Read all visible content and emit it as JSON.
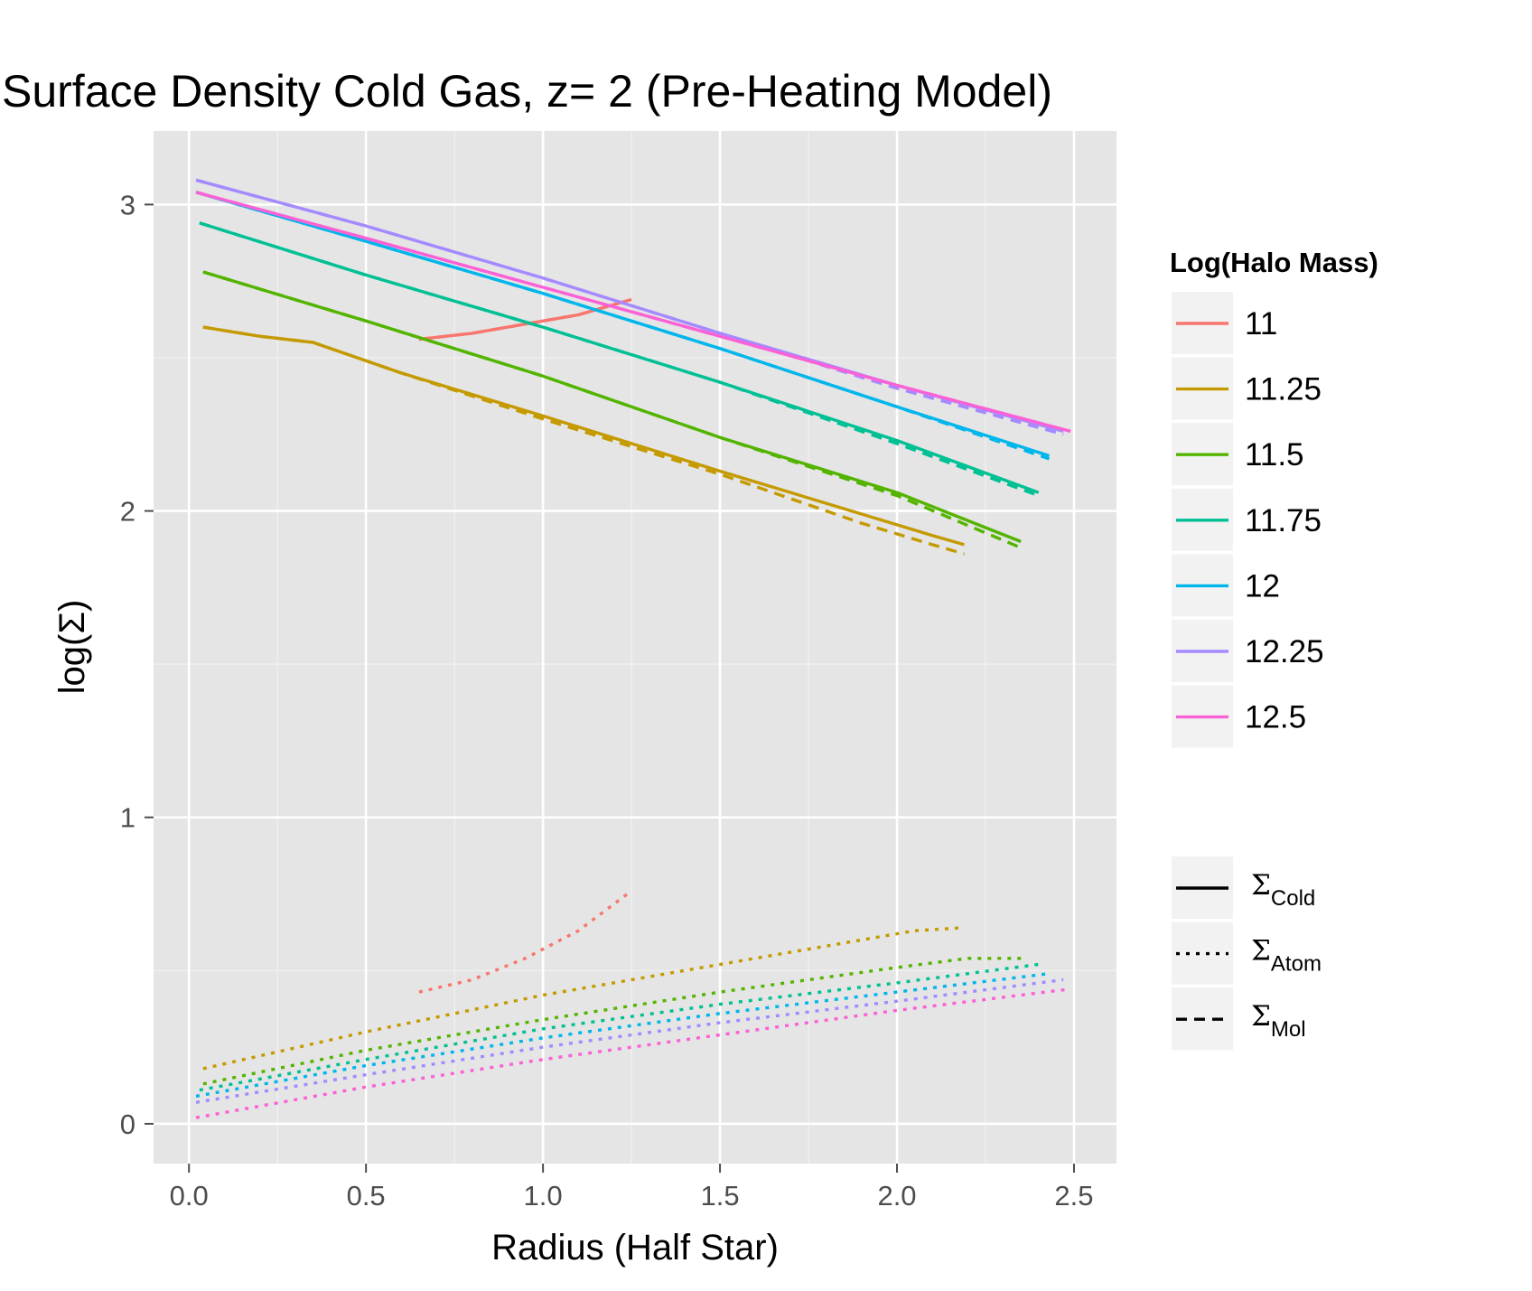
{
  "chart_data": {
    "type": "line",
    "title": "Surface Density Cold Gas, z= 2 (Pre-Heating Model)",
    "xlabel": "Radius (Half Star)",
    "ylabel": "log(Σ)",
    "xlim": [
      -0.1,
      2.62
    ],
    "ylim": [
      -0.13,
      3.24
    ],
    "xticks": [
      {
        "value": 0.0,
        "label": "0.0"
      },
      {
        "value": 0.5,
        "label": "0.5"
      },
      {
        "value": 1.0,
        "label": "1.0"
      },
      {
        "value": 1.5,
        "label": "1.5"
      },
      {
        "value": 2.0,
        "label": "2.0"
      },
      {
        "value": 2.5,
        "label": "2.5"
      }
    ],
    "yticks": [
      {
        "value": 0,
        "label": "0"
      },
      {
        "value": 1,
        "label": "1"
      },
      {
        "value": 2,
        "label": "2"
      },
      {
        "value": 3,
        "label": "3"
      }
    ],
    "grid": true,
    "background": "#e5e5e5",
    "legend_position": "right",
    "legend_color_title": "Log(Halo Mass)",
    "legend_color": [
      {
        "label": "11",
        "color": "#F8766D"
      },
      {
        "label": "11.25",
        "color": "#C49A00"
      },
      {
        "label": "11.5",
        "color": "#53B400"
      },
      {
        "label": "11.75",
        "color": "#00C094"
      },
      {
        "label": "12",
        "color": "#00B6EB"
      },
      {
        "label": "12.25",
        "color": "#A58AFF"
      },
      {
        "label": "12.5",
        "color": "#FB61D7"
      }
    ],
    "legend_linetype": [
      {
        "label": "Σ",
        "sub": "Cold",
        "dash": "solid"
      },
      {
        "label": "Σ",
        "sub": "Atom",
        "dash": "dotted"
      },
      {
        "label": "Σ",
        "sub": "Mol",
        "dash": "dashed"
      }
    ],
    "series": [
      {
        "mass": "11",
        "color": "#F8766D",
        "cold": {
          "x": [
            0.65,
            0.8,
            0.95,
            1.1,
            1.25
          ],
          "y": [
            2.56,
            2.58,
            2.61,
            2.64,
            2.69
          ]
        },
        "mol": {
          "x": [
            0.65,
            0.8,
            0.95,
            1.1,
            1.25
          ],
          "y": [
            2.56,
            2.58,
            2.61,
            2.64,
            2.69
          ]
        },
        "atom": {
          "x": [
            0.65,
            0.8,
            0.95,
            1.1,
            1.25
          ],
          "y": [
            0.43,
            0.47,
            0.54,
            0.63,
            0.76
          ]
        }
      },
      {
        "mass": "11.25",
        "color": "#C49A00",
        "cold": {
          "x": [
            0.04,
            0.2,
            0.35,
            0.6,
            1.0,
            1.5,
            1.9,
            2.1,
            2.19
          ],
          "y": [
            2.6,
            2.57,
            2.55,
            2.45,
            2.31,
            2.13,
            1.99,
            1.92,
            1.89
          ]
        },
        "mol": {
          "x": [
            0.04,
            0.2,
            0.35,
            0.6,
            1.0,
            1.5,
            1.9,
            2.1,
            2.19
          ],
          "y": [
            2.6,
            2.57,
            2.55,
            2.45,
            2.3,
            2.12,
            1.96,
            1.89,
            1.86
          ]
        },
        "atom": {
          "x": [
            0.04,
            0.5,
            1.0,
            1.5,
            1.9,
            2.05,
            2.19
          ],
          "y": [
            0.18,
            0.3,
            0.42,
            0.52,
            0.6,
            0.63,
            0.64
          ]
        }
      },
      {
        "mass": "11.5",
        "color": "#53B400",
        "cold": {
          "x": [
            0.04,
            0.5,
            1.0,
            1.5,
            2.0,
            2.35
          ],
          "y": [
            2.78,
            2.62,
            2.44,
            2.24,
            2.06,
            1.9
          ]
        },
        "mol": {
          "x": [
            0.04,
            0.5,
            1.0,
            1.5,
            2.0,
            2.35
          ],
          "y": [
            2.78,
            2.62,
            2.44,
            2.24,
            2.05,
            1.88
          ]
        },
        "atom": {
          "x": [
            0.04,
            0.5,
            1.0,
            1.5,
            2.0,
            2.2,
            2.35
          ],
          "y": [
            0.13,
            0.24,
            0.34,
            0.43,
            0.51,
            0.54,
            0.54
          ]
        }
      },
      {
        "mass": "11.75",
        "color": "#00C094",
        "cold": {
          "x": [
            0.03,
            0.5,
            1.0,
            1.5,
            2.0,
            2.4
          ],
          "y": [
            2.94,
            2.77,
            2.6,
            2.42,
            2.23,
            2.06
          ]
        },
        "mol": {
          "x": [
            0.03,
            0.5,
            1.0,
            1.5,
            2.0,
            2.4
          ],
          "y": [
            2.94,
            2.77,
            2.6,
            2.42,
            2.22,
            2.05
          ]
        },
        "atom": {
          "x": [
            0.03,
            0.5,
            1.0,
            1.5,
            2.0,
            2.4
          ],
          "y": [
            0.11,
            0.21,
            0.31,
            0.39,
            0.46,
            0.52
          ]
        }
      },
      {
        "mass": "12",
        "color": "#00B6EB",
        "cold": {
          "x": [
            0.02,
            0.5,
            1.0,
            1.5,
            2.0,
            2.43
          ],
          "y": [
            3.04,
            2.88,
            2.71,
            2.53,
            2.34,
            2.18
          ]
        },
        "mol": {
          "x": [
            0.02,
            0.5,
            1.0,
            1.5,
            2.0,
            2.43
          ],
          "y": [
            3.04,
            2.88,
            2.71,
            2.53,
            2.34,
            2.17
          ]
        },
        "atom": {
          "x": [
            0.02,
            0.5,
            1.0,
            1.5,
            2.0,
            2.43
          ],
          "y": [
            0.09,
            0.19,
            0.28,
            0.36,
            0.43,
            0.49
          ]
        }
      },
      {
        "mass": "12.25",
        "color": "#A58AFF",
        "cold": {
          "x": [
            0.02,
            0.5,
            1.0,
            1.5,
            2.0,
            2.47
          ],
          "y": [
            3.08,
            2.93,
            2.76,
            2.58,
            2.41,
            2.26
          ]
        },
        "mol": {
          "x": [
            0.02,
            0.5,
            1.0,
            1.5,
            2.0,
            2.47
          ],
          "y": [
            3.08,
            2.93,
            2.76,
            2.58,
            2.4,
            2.25
          ]
        },
        "atom": {
          "x": [
            0.02,
            0.5,
            1.0,
            1.5,
            2.0,
            2.47
          ],
          "y": [
            0.07,
            0.16,
            0.25,
            0.33,
            0.4,
            0.47
          ]
        }
      },
      {
        "mass": "12.5",
        "color": "#FB61D7",
        "cold": {
          "x": [
            0.02,
            0.5,
            1.0,
            1.5,
            2.0,
            2.49
          ],
          "y": [
            3.04,
            2.89,
            2.73,
            2.57,
            2.41,
            2.26
          ]
        },
        "mol": {
          "x": [
            0.02,
            0.5,
            1.0,
            1.5,
            2.0,
            2.49
          ],
          "y": [
            3.04,
            2.89,
            2.73,
            2.57,
            2.41,
            2.26
          ]
        },
        "atom": {
          "x": [
            0.02,
            0.5,
            1.0,
            1.5,
            2.0,
            2.49
          ],
          "y": [
            0.02,
            0.12,
            0.21,
            0.29,
            0.37,
            0.44
          ]
        }
      }
    ]
  }
}
